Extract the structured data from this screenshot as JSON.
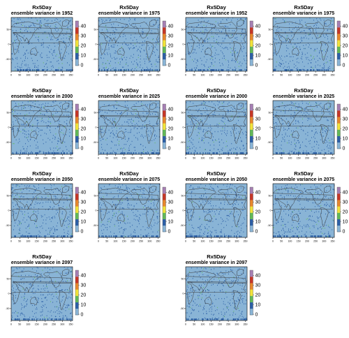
{
  "chart_data": [
    {
      "type": "heatmap",
      "title": "Rx5Day",
      "subtitle": "ensemble variance in 1952",
      "xticks": [
        0,
        50,
        100,
        150,
        200,
        250,
        300,
        350
      ],
      "yticks": [
        50,
        0,
        -50
      ],
      "colorbar": {
        "ticks": [
          0,
          10,
          20,
          30,
          40
        ],
        "colors": [
          "#89b4d6",
          "#2c5fa6",
          "#62b957",
          "#f2e33a",
          "#e8872c",
          "#c73626",
          "#a67fb3"
        ]
      }
    },
    {
      "type": "heatmap",
      "title": "Rx5Day",
      "subtitle": "ensemble variance in 1975",
      "xticks": [
        0,
        50,
        100,
        150,
        200,
        250,
        300,
        350
      ],
      "yticks": [
        50,
        0,
        -50
      ],
      "colorbar": {
        "ticks": [
          0,
          10,
          20,
          30,
          40
        ],
        "colors": [
          "#89b4d6",
          "#2c5fa6",
          "#62b957",
          "#f2e33a",
          "#e8872c",
          "#c73626",
          "#a67fb3"
        ]
      }
    },
    {
      "type": "heatmap",
      "title": "Rx5Day",
      "subtitle": "ensemble variance in 1952",
      "xticks": [
        0,
        50,
        100,
        150,
        200,
        250,
        300,
        350
      ],
      "yticks": [
        50,
        0,
        -50
      ],
      "colorbar": {
        "ticks": [
          0,
          10,
          20,
          30,
          40
        ],
        "colors": [
          "#89b4d6",
          "#2c5fa6",
          "#62b957",
          "#f2e33a",
          "#e8872c",
          "#c73626",
          "#a67fb3"
        ]
      }
    },
    {
      "type": "heatmap",
      "title": "Rx5Day",
      "subtitle": "ensemble variance in 1975",
      "xticks": [
        0,
        50,
        100,
        150,
        200,
        250,
        300,
        350
      ],
      "yticks": [
        50,
        0,
        -50
      ],
      "colorbar": {
        "ticks": [
          0,
          10,
          20,
          30,
          40
        ],
        "colors": [
          "#89b4d6",
          "#2c5fa6",
          "#62b957",
          "#f2e33a",
          "#e8872c",
          "#c73626",
          "#a67fb3"
        ]
      }
    },
    {
      "type": "heatmap",
      "title": "Rx5Day",
      "subtitle": "ensemble variance in 2000",
      "xticks": [
        0,
        50,
        100,
        150,
        200,
        250,
        300,
        350
      ],
      "yticks": [
        50,
        0,
        -50
      ],
      "colorbar": {
        "ticks": [
          0,
          10,
          20,
          30,
          40
        ],
        "colors": [
          "#89b4d6",
          "#2c5fa6",
          "#62b957",
          "#f2e33a",
          "#e8872c",
          "#c73626",
          "#a67fb3"
        ]
      }
    },
    {
      "type": "heatmap",
      "title": "Rx5Day",
      "subtitle": "ensemble variance in 2025",
      "xticks": [
        0,
        50,
        100,
        150,
        200,
        250,
        300,
        350
      ],
      "yticks": [
        50,
        0,
        -50
      ],
      "colorbar": {
        "ticks": [
          0,
          10,
          20,
          30,
          40
        ],
        "colors": [
          "#89b4d6",
          "#2c5fa6",
          "#62b957",
          "#f2e33a",
          "#e8872c",
          "#c73626",
          "#a67fb3"
        ]
      }
    },
    {
      "type": "heatmap",
      "title": "Rx5Day",
      "subtitle": "ensemble variance in 2000",
      "xticks": [
        0,
        50,
        100,
        150,
        200,
        250,
        300,
        350
      ],
      "yticks": [
        50,
        0,
        -50
      ],
      "colorbar": {
        "ticks": [
          0,
          10,
          20,
          30,
          40
        ],
        "colors": [
          "#89b4d6",
          "#2c5fa6",
          "#62b957",
          "#f2e33a",
          "#e8872c",
          "#c73626",
          "#a67fb3"
        ]
      }
    },
    {
      "type": "heatmap",
      "title": "Rx5Day",
      "subtitle": "ensemble variance in 2025",
      "xticks": [
        0,
        50,
        100,
        150,
        200,
        250,
        300,
        350
      ],
      "yticks": [
        50,
        0,
        -50
      ],
      "colorbar": {
        "ticks": [
          0,
          10,
          20,
          30,
          40
        ],
        "colors": [
          "#89b4d6",
          "#2c5fa6",
          "#62b957",
          "#f2e33a",
          "#e8872c",
          "#c73626",
          "#a67fb3"
        ]
      }
    },
    {
      "type": "heatmap",
      "title": "Rx5Day",
      "subtitle": "ensemble variance in 2050",
      "xticks": [
        0,
        50,
        100,
        150,
        200,
        250,
        300,
        350
      ],
      "yticks": [
        50,
        0,
        -50
      ],
      "colorbar": {
        "ticks": [
          0,
          10,
          20,
          30,
          40
        ],
        "colors": [
          "#89b4d6",
          "#2c5fa6",
          "#62b957",
          "#f2e33a",
          "#e8872c",
          "#c73626",
          "#a67fb3"
        ]
      }
    },
    {
      "type": "heatmap",
      "title": "Rx5Day",
      "subtitle": "ensemble variance in 2075",
      "xticks": [
        0,
        50,
        100,
        150,
        200,
        250,
        300,
        350
      ],
      "yticks": [
        50,
        0,
        -50
      ],
      "colorbar": {
        "ticks": [
          0,
          10,
          20,
          30,
          40
        ],
        "colors": [
          "#89b4d6",
          "#2c5fa6",
          "#62b957",
          "#f2e33a",
          "#e8872c",
          "#c73626",
          "#a67fb3"
        ]
      }
    },
    {
      "type": "heatmap",
      "title": "Rx5Day",
      "subtitle": "ensemble variance in 2050",
      "xticks": [
        0,
        50,
        100,
        150,
        200,
        250,
        300,
        350
      ],
      "yticks": [
        50,
        0,
        -50
      ],
      "colorbar": {
        "ticks": [
          0,
          10,
          20,
          30,
          40
        ],
        "colors": [
          "#89b4d6",
          "#2c5fa6",
          "#62b957",
          "#f2e33a",
          "#e8872c",
          "#c73626",
          "#a67fb3"
        ]
      }
    },
    {
      "type": "heatmap",
      "title": "Rx5Day",
      "subtitle": "ensemble variance in 2075",
      "xticks": [
        0,
        50,
        100,
        150,
        200,
        250,
        300,
        350
      ],
      "yticks": [
        50,
        0,
        -50
      ],
      "colorbar": {
        "ticks": [
          0,
          10,
          20,
          30,
          40
        ],
        "colors": [
          "#89b4d6",
          "#2c5fa6",
          "#62b957",
          "#f2e33a",
          "#e8872c",
          "#c73626",
          "#a67fb3"
        ]
      }
    },
    {
      "type": "heatmap",
      "title": "Rx5Day",
      "subtitle": "ensemble variance in 2097",
      "xticks": [
        0,
        50,
        100,
        150,
        200,
        250,
        300,
        350
      ],
      "yticks": [
        50,
        0,
        -50
      ],
      "colorbar": {
        "ticks": [
          0,
          10,
          20,
          30,
          40
        ],
        "colors": [
          "#89b4d6",
          "#2c5fa6",
          "#62b957",
          "#f2e33a",
          "#e8872c",
          "#c73626",
          "#a67fb3"
        ]
      }
    },
    {
      "type": "heatmap",
      "title": "Rx5Day",
      "subtitle": "ensemble variance in 2097",
      "xticks": [
        0,
        50,
        100,
        150,
        200,
        250,
        300,
        350
      ],
      "yticks": [
        50,
        0,
        -50
      ],
      "colorbar": {
        "ticks": [
          0,
          10,
          20,
          30,
          40
        ],
        "colors": [
          "#89b4d6",
          "#2c5fa6",
          "#62b957",
          "#f2e33a",
          "#e8872c",
          "#c73626",
          "#a67fb3"
        ]
      }
    }
  ]
}
